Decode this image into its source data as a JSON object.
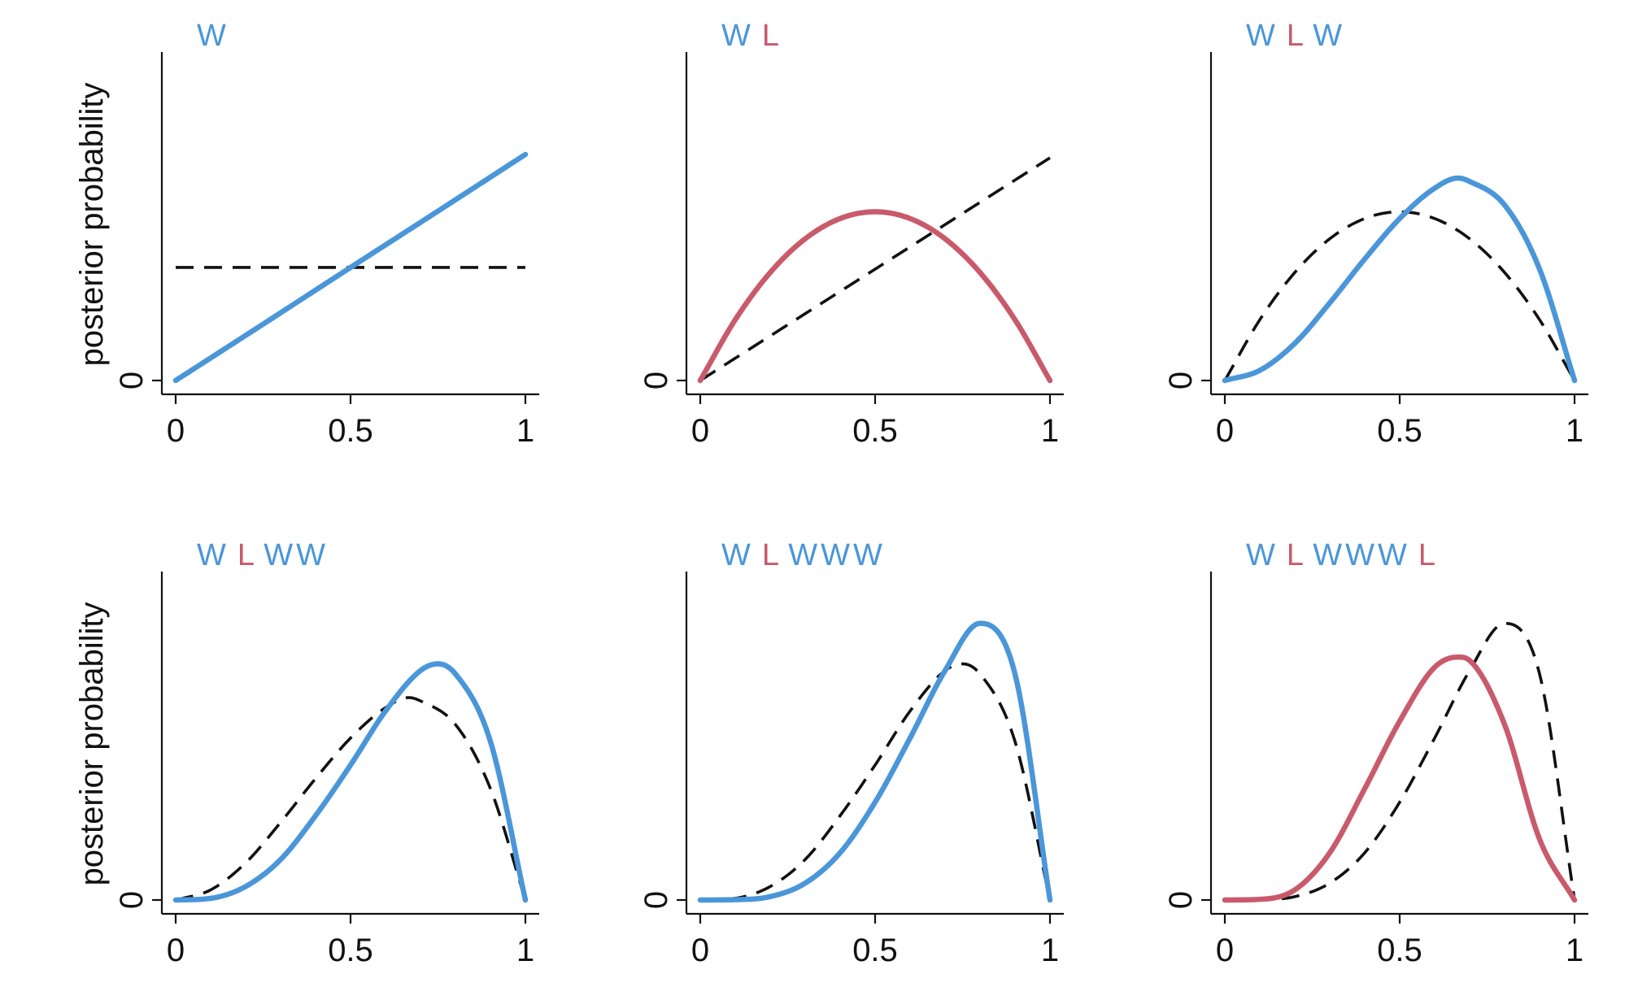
{
  "colors": {
    "water": "#4a96d9",
    "land": "#c95a6c",
    "axis": "#111111",
    "prior": "#111111"
  },
  "chart_data": [
    {
      "type": "line",
      "sequence": [
        {
          "text": "W",
          "kind": "water"
        }
      ],
      "ylabel": "posterior probability",
      "xlim": [
        0,
        1
      ],
      "xticks": [
        "0",
        "0.5",
        "1"
      ],
      "yticks": [
        "0"
      ],
      "ylim": [
        0,
        1
      ],
      "grid": false,
      "series": [
        {
          "role": "prior",
          "style": "dashed",
          "x": [
            0,
            0.25,
            0.5,
            0.75,
            1
          ],
          "y": [
            0.335,
            0.335,
            0.335,
            0.335,
            0.335
          ]
        },
        {
          "role": "posterior",
          "style": "solid",
          "color_key": "water",
          "x": [
            0,
            0.25,
            0.5,
            0.75,
            1
          ],
          "y": [
            0,
            0.167,
            0.335,
            0.502,
            0.67
          ]
        }
      ]
    },
    {
      "type": "line",
      "sequence": [
        {
          "text": "W",
          "kind": "water"
        },
        {
          "text": "L",
          "kind": "land"
        }
      ],
      "ylabel": "",
      "xlim": [
        0,
        1
      ],
      "xticks": [
        "0",
        "0.5",
        "1"
      ],
      "yticks": [
        "0"
      ],
      "ylim": [
        0,
        1
      ],
      "grid": false,
      "series": [
        {
          "role": "prior",
          "style": "dashed",
          "x": [
            0,
            0.25,
            0.5,
            0.75,
            1
          ],
          "y": [
            0,
            0.165,
            0.33,
            0.495,
            0.66
          ]
        },
        {
          "role": "posterior",
          "style": "solid",
          "color_key": "land",
          "x": [
            0,
            0.1,
            0.2,
            0.3,
            0.4,
            0.5,
            0.6,
            0.7,
            0.8,
            0.9,
            1
          ],
          "y": [
            0,
            0.18,
            0.32,
            0.42,
            0.48,
            0.5,
            0.48,
            0.42,
            0.32,
            0.18,
            0
          ]
        }
      ]
    },
    {
      "type": "line",
      "sequence": [
        {
          "text": "W",
          "kind": "water"
        },
        {
          "text": "L",
          "kind": "land"
        },
        {
          "text": "W",
          "kind": "water"
        }
      ],
      "ylabel": "",
      "xlim": [
        0,
        1
      ],
      "xticks": [
        "0",
        "0.5",
        "1"
      ],
      "yticks": [
        "0"
      ],
      "ylim": [
        0,
        1
      ],
      "grid": false,
      "series": [
        {
          "role": "prior",
          "style": "dashed",
          "x": [
            0,
            0.1,
            0.2,
            0.3,
            0.4,
            0.5,
            0.6,
            0.7,
            0.8,
            0.9,
            1
          ],
          "y": [
            0,
            0.18,
            0.32,
            0.42,
            0.48,
            0.5,
            0.48,
            0.42,
            0.32,
            0.18,
            0
          ]
        },
        {
          "role": "posterior",
          "style": "solid",
          "color_key": "water",
          "x": [
            0,
            0.1,
            0.2,
            0.3,
            0.4,
            0.5,
            0.6,
            0.667,
            0.7,
            0.8,
            0.9,
            1
          ],
          "y": [
            0,
            0.03,
            0.11,
            0.23,
            0.36,
            0.48,
            0.57,
            0.6,
            0.59,
            0.52,
            0.33,
            0
          ]
        }
      ]
    },
    {
      "type": "line",
      "sequence": [
        {
          "text": "W",
          "kind": "water"
        },
        {
          "text": "L",
          "kind": "land"
        },
        {
          "text": "W",
          "kind": "water"
        },
        {
          "text": "W",
          "kind": "water"
        }
      ],
      "ylabel": "posterior probability",
      "xlim": [
        0,
        1
      ],
      "xticks": [
        "0",
        "0.5",
        "1"
      ],
      "yticks": [
        "0"
      ],
      "ylim": [
        0,
        1
      ],
      "grid": false,
      "series": [
        {
          "role": "prior",
          "style": "dashed",
          "x": [
            0,
            0.1,
            0.2,
            0.3,
            0.4,
            0.5,
            0.6,
            0.667,
            0.7,
            0.8,
            0.9,
            1
          ],
          "y": [
            0,
            0.03,
            0.11,
            0.23,
            0.36,
            0.48,
            0.57,
            0.6,
            0.59,
            0.52,
            0.33,
            0
          ]
        },
        {
          "role": "posterior",
          "style": "solid",
          "color_key": "water",
          "x": [
            0,
            0.1,
            0.2,
            0.3,
            0.4,
            0.5,
            0.6,
            0.7,
            0.75,
            0.8,
            0.9,
            1
          ],
          "y": [
            0,
            0.005,
            0.04,
            0.12,
            0.25,
            0.4,
            0.56,
            0.68,
            0.7,
            0.67,
            0.47,
            0
          ]
        }
      ]
    },
    {
      "type": "line",
      "sequence": [
        {
          "text": "W",
          "kind": "water"
        },
        {
          "text": "L",
          "kind": "land"
        },
        {
          "text": "W",
          "kind": "water"
        },
        {
          "text": "W",
          "kind": "water"
        },
        {
          "text": "W",
          "kind": "water"
        }
      ],
      "ylabel": "",
      "xlim": [
        0,
        1
      ],
      "xticks": [
        "0",
        "0.5",
        "1"
      ],
      "yticks": [
        "0"
      ],
      "ylim": [
        0,
        1
      ],
      "grid": false,
      "series": [
        {
          "role": "prior",
          "style": "dashed",
          "x": [
            0,
            0.1,
            0.2,
            0.3,
            0.4,
            0.5,
            0.6,
            0.7,
            0.75,
            0.8,
            0.9,
            1
          ],
          "y": [
            0,
            0.005,
            0.04,
            0.12,
            0.25,
            0.4,
            0.56,
            0.68,
            0.7,
            0.67,
            0.47,
            0
          ]
        },
        {
          "role": "posterior",
          "style": "solid",
          "color_key": "water",
          "x": [
            0,
            0.1,
            0.2,
            0.3,
            0.4,
            0.5,
            0.6,
            0.7,
            0.8,
            0.9,
            1
          ],
          "y": [
            0,
            0.001,
            0.01,
            0.05,
            0.14,
            0.29,
            0.48,
            0.68,
            0.82,
            0.67,
            0
          ]
        }
      ]
    },
    {
      "type": "line",
      "sequence": [
        {
          "text": "W",
          "kind": "water"
        },
        {
          "text": "L",
          "kind": "land"
        },
        {
          "text": "W",
          "kind": "water"
        },
        {
          "text": "W",
          "kind": "water"
        },
        {
          "text": "W",
          "kind": "water"
        },
        {
          "text": "L",
          "kind": "land"
        }
      ],
      "ylabel": "",
      "xlim": [
        0,
        1
      ],
      "xticks": [
        "0",
        "0.5",
        "1"
      ],
      "yticks": [
        "0"
      ],
      "ylim": [
        0,
        1
      ],
      "grid": false,
      "series": [
        {
          "role": "prior",
          "style": "dashed",
          "x": [
            0,
            0.1,
            0.2,
            0.3,
            0.4,
            0.5,
            0.6,
            0.7,
            0.8,
            0.9,
            1
          ],
          "y": [
            0,
            0.001,
            0.01,
            0.05,
            0.14,
            0.29,
            0.48,
            0.68,
            0.82,
            0.67,
            0
          ]
        },
        {
          "role": "posterior",
          "style": "solid",
          "color_key": "land",
          "x": [
            0,
            0.1,
            0.2,
            0.3,
            0.4,
            0.5,
            0.6,
            0.667,
            0.7,
            0.8,
            0.9,
            1
          ],
          "y": [
            0,
            0.002,
            0.03,
            0.14,
            0.33,
            0.53,
            0.69,
            0.72,
            0.71,
            0.52,
            0.18,
            0
          ]
        }
      ]
    }
  ]
}
